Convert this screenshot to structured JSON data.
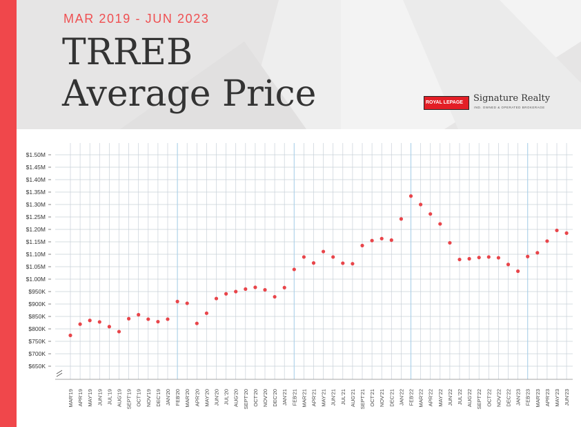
{
  "header": {
    "date_range": "MAR 2019 - JUN 2023",
    "title_line1": "TRREB",
    "title_line2": "Average Price"
  },
  "logo": {
    "box_text": "ROYAL LEPAGE",
    "brand": "Signature Realty",
    "tagline": "IND. OWNED & OPERATED BROKERAGE"
  },
  "colors": {
    "accent": "#f0474b",
    "dot": "#e8454a",
    "grid": "#c8d0d8",
    "year_grid": "#a9cfe8"
  },
  "chart_data": {
    "type": "scatter",
    "title": "TRREB Average Price",
    "xlabel": "",
    "ylabel": "",
    "ylim": [
      650000,
      1500000
    ],
    "y_ticks": [
      {
        "value": 650000,
        "label": "$650K"
      },
      {
        "value": 700000,
        "label": "$700K"
      },
      {
        "value": 750000,
        "label": "$750K"
      },
      {
        "value": 800000,
        "label": "$800K"
      },
      {
        "value": 850000,
        "label": "$850K"
      },
      {
        "value": 900000,
        "label": "$900K"
      },
      {
        "value": 950000,
        "label": "$950K"
      },
      {
        "value": 1000000,
        "label": "$1.00M"
      },
      {
        "value": 1050000,
        "label": "$1.05M"
      },
      {
        "value": 1100000,
        "label": "$1.10M"
      },
      {
        "value": 1150000,
        "label": "$1.15M"
      },
      {
        "value": 1200000,
        "label": "$1.20M"
      },
      {
        "value": 1250000,
        "label": "$1.25M"
      },
      {
        "value": 1300000,
        "label": "$1.30M"
      },
      {
        "value": 1350000,
        "label": "$1.35M"
      },
      {
        "value": 1400000,
        "label": "$1.40M"
      },
      {
        "value": 1450000,
        "label": "$1.45M"
      },
      {
        "value": 1500000,
        "label": "$1.50M"
      }
    ],
    "grid": true,
    "categories": [
      "MAR'19",
      "APR'19",
      "MAY'19",
      "JUN'19",
      "JUL'19",
      "AUG'19",
      "SEPT'19",
      "OCT'19",
      "NOV'19",
      "DEC'19",
      "JAN'20",
      "FEB'20",
      "MAR'20",
      "APR'20",
      "MAY'20",
      "JUN'20",
      "JUL'20",
      "AUG'20",
      "SEPT'20",
      "OCT'20",
      "NOV'20",
      "DEC'20",
      "JAN'21",
      "FEB'21",
      "MAR'21",
      "APR'21",
      "MAY'21",
      "JUN'21",
      "JUL'21",
      "AUG'21",
      "SEPT'21",
      "OCT'21",
      "NOV'21",
      "DEC'21",
      "JAN'22",
      "FEB'22",
      "MAR'22",
      "APR'22",
      "MAY'22",
      "JUN'22",
      "JUL'22",
      "AUG'22",
      "SEPT'22",
      "OCT'22",
      "NOV'22",
      "DEC'22",
      "JAN'23",
      "FEB'23",
      "MAR'23",
      "APR'23",
      "MAY'23",
      "JUN'23"
    ],
    "values": [
      774000,
      819000,
      834000,
      828000,
      809000,
      789000,
      841000,
      857000,
      839000,
      829000,
      839000,
      910000,
      903000,
      822000,
      863000,
      922000,
      941000,
      950000,
      960000,
      967000,
      957000,
      929000,
      966000,
      1039000,
      1089000,
      1065000,
      1111000,
      1089000,
      1064000,
      1062000,
      1135000,
      1155000,
      1163000,
      1157000,
      1242000,
      1334000,
      1300000,
      1262000,
      1222000,
      1146000,
      1079000,
      1082000,
      1087000,
      1089000,
      1086000,
      1059000,
      1032000,
      1091000,
      1106000,
      1153000,
      1196000,
      1185000
    ],
    "year_starts": [
      "FEB'20",
      "FEB'21",
      "FEB'22",
      "FEB'23"
    ]
  }
}
